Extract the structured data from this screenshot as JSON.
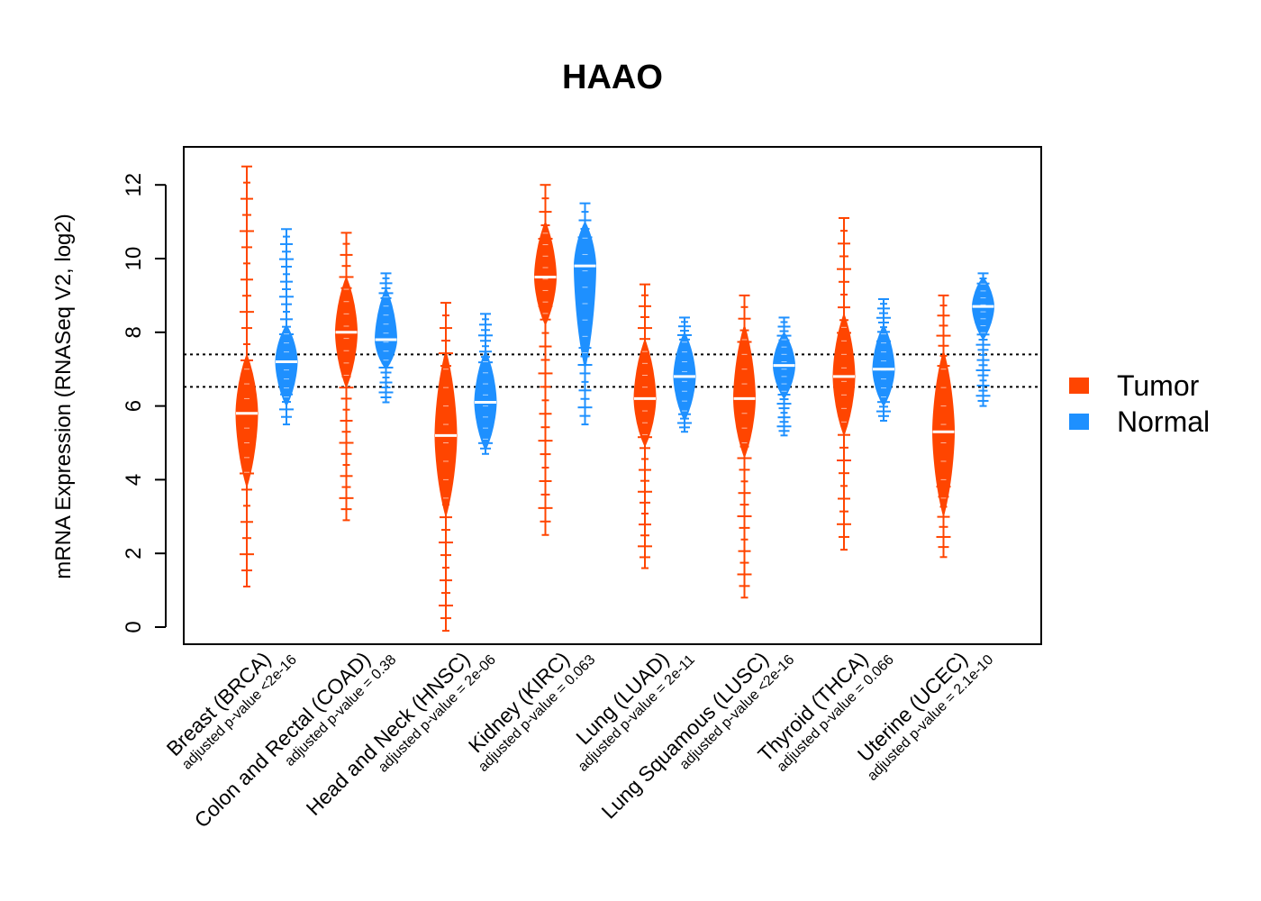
{
  "chart_data": {
    "type": "violin",
    "title": "HAAO",
    "ylabel": "mRNA Expression (RNASeq V2, log2)",
    "xlabel": "",
    "ylim": [
      -0.5,
      13
    ],
    "yticks": [
      0,
      2,
      4,
      6,
      8,
      10,
      12
    ],
    "reference_lines": [
      7.4,
      6.52
    ],
    "legend": {
      "position": "right",
      "entries": [
        {
          "name": "Tumor",
          "color": "#FF4500"
        },
        {
          "name": "Normal",
          "color": "#1E90FF"
        }
      ]
    },
    "categories": [
      {
        "label": "Breast (BRCA)",
        "pvalue": "adjusted p-value <2e-16",
        "tumor": {
          "median": 5.8,
          "core": [
            3.8,
            7.4
          ],
          "range": [
            1.1,
            12.5
          ]
        },
        "normal": {
          "median": 7.2,
          "core": [
            6.0,
            8.2
          ],
          "range": [
            5.5,
            10.8
          ]
        }
      },
      {
        "label": "Colon and Rectal (COAD)",
        "pvalue": "adjusted p-value = 0.38",
        "tumor": {
          "median": 8.0,
          "core": [
            6.5,
            9.5
          ],
          "range": [
            2.9,
            10.7
          ]
        },
        "normal": {
          "median": 7.8,
          "core": [
            7.0,
            9.2
          ],
          "range": [
            6.1,
            9.6
          ]
        }
      },
      {
        "label": "Head and Neck (HNSC)",
        "pvalue": "adjusted p-value = 2e-06",
        "tumor": {
          "median": 5.2,
          "core": [
            3.0,
            7.5
          ],
          "range": [
            -0.1,
            8.8
          ]
        },
        "normal": {
          "median": 6.1,
          "core": [
            4.8,
            7.5
          ],
          "range": [
            4.7,
            8.5
          ]
        }
      },
      {
        "label": "Kidney (KIRC)",
        "pvalue": "adjusted p-value = 0.063",
        "tumor": {
          "median": 9.5,
          "core": [
            8.2,
            11.0
          ],
          "range": [
            2.5,
            12.0
          ]
        },
        "normal": {
          "median": 9.8,
          "core": [
            7.0,
            11.0
          ],
          "range": [
            5.5,
            11.5
          ]
        }
      },
      {
        "label": "Lung (LUAD)",
        "pvalue": "adjusted p-value = 2e-11",
        "tumor": {
          "median": 6.2,
          "core": [
            4.9,
            7.8
          ],
          "range": [
            1.6,
            9.3
          ]
        },
        "normal": {
          "median": 6.8,
          "core": [
            5.6,
            8.0
          ],
          "range": [
            5.3,
            8.4
          ]
        }
      },
      {
        "label": "Lung Squamous (LUSC)",
        "pvalue": "adjusted p-value <2e-16",
        "tumor": {
          "median": 6.2,
          "core": [
            4.6,
            8.2
          ],
          "range": [
            0.8,
            9.0
          ]
        },
        "normal": {
          "median": 7.1,
          "core": [
            6.2,
            8.0
          ],
          "range": [
            5.2,
            8.4
          ]
        }
      },
      {
        "label": "Thyroid (THCA)",
        "pvalue": "adjusted p-value = 0.066",
        "tumor": {
          "median": 6.8,
          "core": [
            5.2,
            8.5
          ],
          "range": [
            2.1,
            11.1
          ]
        },
        "normal": {
          "median": 7.0,
          "core": [
            6.0,
            8.2
          ],
          "range": [
            5.6,
            8.9
          ]
        }
      },
      {
        "label": "Uterine (UCEC)",
        "pvalue": "adjusted p-value = 2.1e-10",
        "tumor": {
          "median": 5.3,
          "core": [
            3.0,
            7.5
          ],
          "range": [
            1.9,
            9.0
          ]
        },
        "normal": {
          "median": 8.7,
          "core": [
            7.8,
            9.5
          ],
          "range": [
            6.0,
            9.6
          ]
        }
      }
    ]
  }
}
